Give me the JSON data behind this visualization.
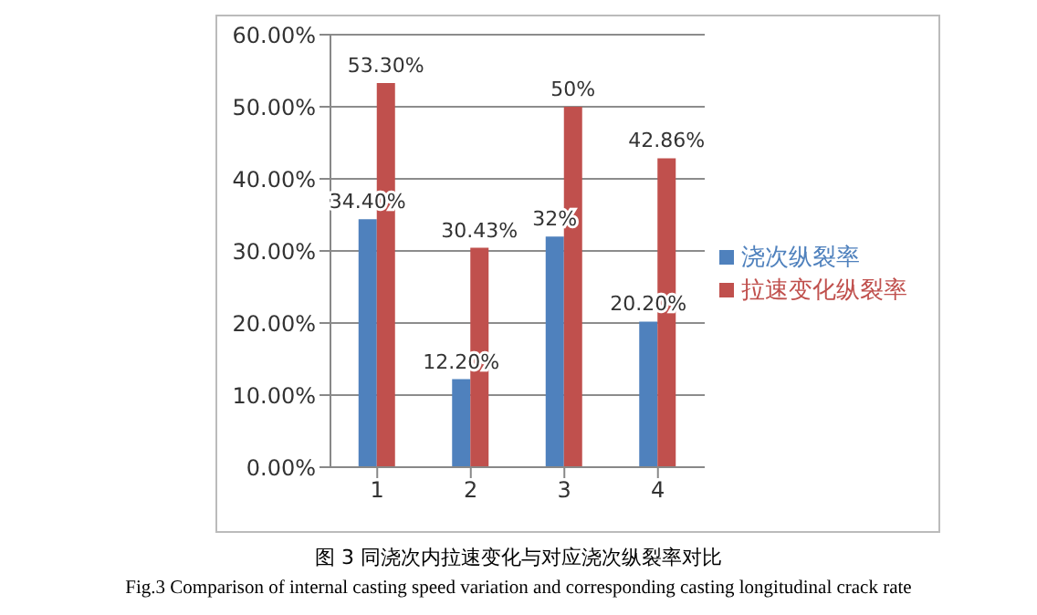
{
  "chart_data": {
    "type": "bar",
    "title": "图 3 同浇次内拉速变化与对应浇次纵裂率对比",
    "subtitle": "Fig.3 Comparison of internal casting speed variation and corresponding casting longitudinal crack rate",
    "categories": [
      "1",
      "2",
      "3",
      "4"
    ],
    "series": [
      {
        "name": "浇次纵裂率",
        "color": "#4f81bd",
        "values": [
          34.4,
          12.2,
          32,
          20.2
        ],
        "value_labels": [
          "34.40%",
          "12.20%",
          "32%",
          "20.20%"
        ]
      },
      {
        "name": "拉速变化纵裂率",
        "color": "#c0504d",
        "values": [
          53.3,
          30.43,
          50,
          42.86
        ],
        "value_labels": [
          "53.30%",
          "30.43%",
          "50%",
          "42.86%"
        ]
      }
    ],
    "ylim": [
      0,
      60
    ],
    "yticks": [
      {
        "value": 0,
        "label": "0.00%"
      },
      {
        "value": 10,
        "label": "10.00%"
      },
      {
        "value": 20,
        "label": "20.00%"
      },
      {
        "value": 30,
        "label": "30.00%"
      },
      {
        "value": 40,
        "label": "40.00%"
      },
      {
        "value": 50,
        "label": "50.00%"
      },
      {
        "value": 60,
        "label": "60.00%"
      }
    ],
    "grid": "y",
    "legend": "right"
  }
}
